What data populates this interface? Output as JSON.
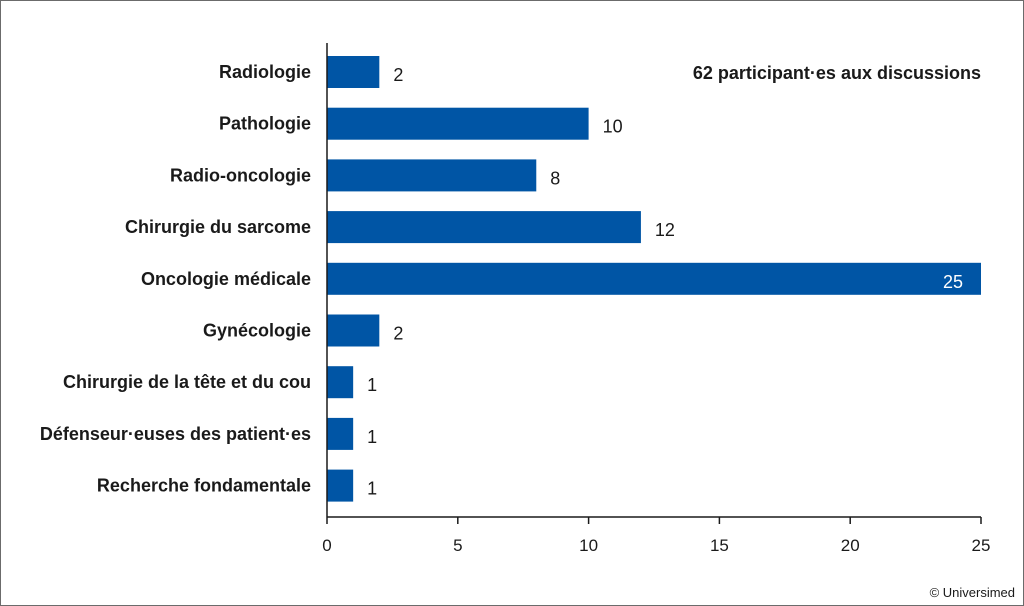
{
  "chart_data": {
    "type": "bar",
    "orientation": "horizontal",
    "categories": [
      "Radiologie",
      "Pathologie",
      "Radio-oncologie",
      "Chirurgie du sarcome",
      "Oncologie médicale",
      "Gynécologie",
      "Chirurgie de la tête et du cou",
      "Défenseur·euses des patient·es",
      "Recherche fondamentale"
    ],
    "values": [
      2,
      10,
      8,
      12,
      25,
      2,
      1,
      1,
      1
    ],
    "xlim": [
      0,
      25
    ],
    "x_ticks": [
      0,
      5,
      10,
      15,
      20,
      25
    ],
    "grid": false,
    "bar_color": "#0055a5",
    "annotation": "62 participant·es aux discussions"
  },
  "footer": {
    "credit": "© Universimed"
  }
}
